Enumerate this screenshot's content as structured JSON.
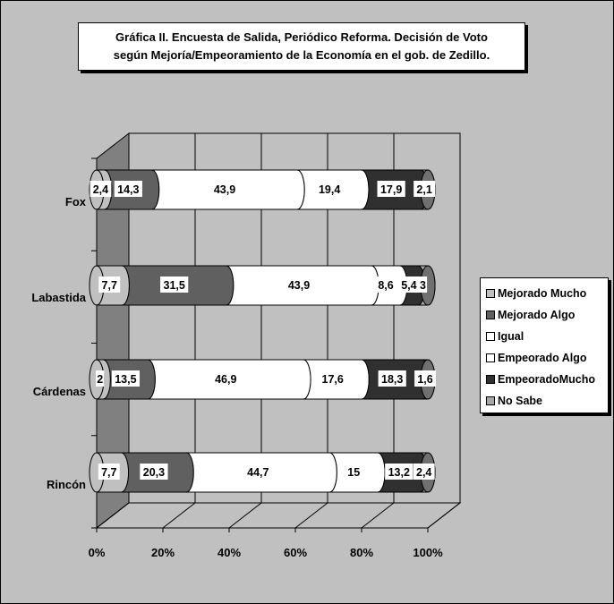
{
  "chart_data": {
    "type": "bar",
    "orientation": "horizontal",
    "stacked": "percent",
    "three_d": true,
    "title_line1": "Gráfica II. Encuesta de Salida, Periódico Reforma. Decisión de Voto",
    "title_line2": "según  Mejoría/Empeoramiento de la Economía en el gob. de Zedillo.",
    "categories": [
      "Fox",
      "Labastida",
      "Cárdenas",
      "Rincón"
    ],
    "x_ticks": [
      "0%",
      "20%",
      "40%",
      "60%",
      "80%",
      "100%"
    ],
    "xlim": [
      0,
      100
    ],
    "grid": true,
    "legend_position": "right",
    "series": [
      {
        "name": "Mejorado Mucho",
        "color": "#c0c0c0",
        "values": [
          2.4,
          7.7,
          2,
          7.7
        ],
        "labels": [
          "2,4",
          "7,7",
          "2",
          "7,7"
        ]
      },
      {
        "name": "Mejorado Algo",
        "color": "#606060",
        "values": [
          14.3,
          31.5,
          13.5,
          20.3
        ],
        "labels": [
          "14,3",
          "31,5",
          "13,5",
          "20,3"
        ]
      },
      {
        "name": "Igual",
        "color": "#ffffff",
        "values": [
          43.9,
          43.9,
          46.9,
          44.7
        ],
        "labels": [
          "43,9",
          "43,9",
          "46,9",
          "44,7"
        ]
      },
      {
        "name": "Empeorado Algo",
        "color": "#ffffff",
        "values": [
          19.4,
          8.6,
          17.6,
          15
        ],
        "labels": [
          "19,4",
          "8,6",
          "17,6",
          "15"
        ]
      },
      {
        "name": "EmpeoradoMucho",
        "color": "#303030",
        "values": [
          17.9,
          5.4,
          18.3,
          13.2
        ],
        "labels": [
          "17,9",
          "5,4",
          "18,3",
          "13,2"
        ]
      },
      {
        "name": "No Sabe",
        "color": "#a8a8a8",
        "values": [
          2.1,
          3,
          1.6,
          2.4
        ],
        "labels": [
          "2,1",
          "3",
          "1,6",
          "2,4"
        ]
      }
    ]
  }
}
